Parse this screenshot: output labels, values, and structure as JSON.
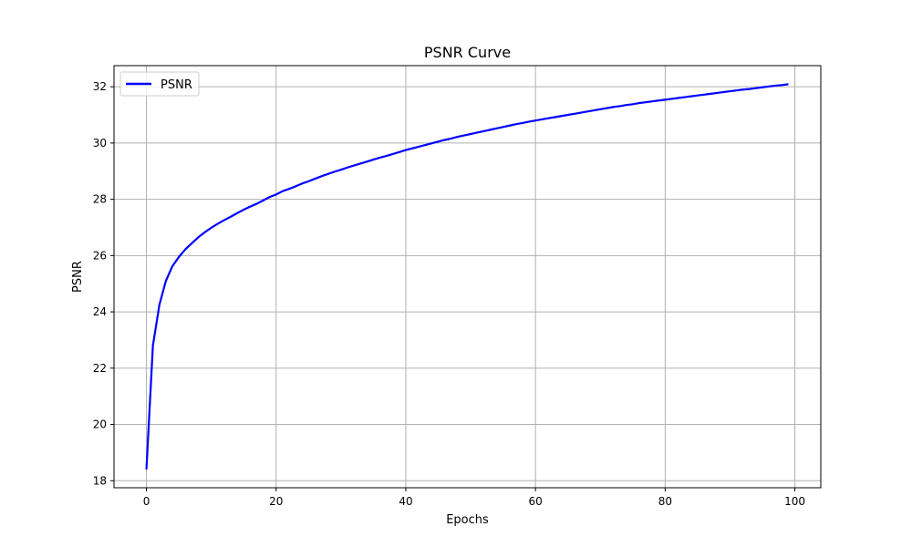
{
  "chart_data": {
    "type": "line",
    "title": "PSNR Curve",
    "xlabel": "Epochs",
    "ylabel": "PSNR",
    "xlim": [
      -5,
      104
    ],
    "ylim": [
      17.75,
      32.75
    ],
    "xticks": [
      0,
      20,
      40,
      60,
      80,
      100
    ],
    "yticks": [
      18,
      20,
      22,
      24,
      26,
      28,
      30,
      32
    ],
    "grid": true,
    "legend_position": "upper-left",
    "series": [
      {
        "name": "PSNR",
        "color": "#0000ff",
        "x": [
          0,
          1,
          2,
          3,
          4,
          5,
          6,
          7,
          8,
          9,
          10,
          11,
          12,
          13,
          14,
          15,
          16,
          17,
          18,
          19,
          20,
          21,
          22,
          23,
          24,
          25,
          26,
          27,
          28,
          29,
          30,
          31,
          32,
          33,
          34,
          35,
          36,
          37,
          38,
          39,
          40,
          41,
          42,
          43,
          44,
          45,
          46,
          47,
          48,
          49,
          50,
          51,
          52,
          53,
          54,
          55,
          56,
          57,
          58,
          59,
          60,
          61,
          62,
          63,
          64,
          65,
          66,
          67,
          68,
          69,
          70,
          71,
          72,
          73,
          74,
          75,
          76,
          77,
          78,
          79,
          80,
          81,
          82,
          83,
          84,
          85,
          86,
          87,
          88,
          89,
          90,
          91,
          92,
          93,
          94,
          95,
          96,
          97,
          98,
          99
        ],
        "y": [
          18.4,
          22.8,
          24.25,
          25.1,
          25.62,
          25.95,
          26.22,
          26.44,
          26.65,
          26.83,
          26.99,
          27.13,
          27.26,
          27.38,
          27.51,
          27.63,
          27.74,
          27.84,
          27.96,
          28.08,
          28.17,
          28.29,
          28.37,
          28.46,
          28.56,
          28.64,
          28.73,
          28.82,
          28.9,
          28.98,
          29.05,
          29.13,
          29.2,
          29.27,
          29.34,
          29.41,
          29.48,
          29.54,
          29.61,
          29.68,
          29.75,
          29.81,
          29.87,
          29.93,
          29.99,
          30.05,
          30.11,
          30.16,
          30.22,
          30.27,
          30.32,
          30.37,
          30.42,
          30.47,
          30.52,
          30.57,
          30.62,
          30.67,
          30.71,
          30.76,
          30.8,
          30.84,
          30.88,
          30.92,
          30.96,
          31.0,
          31.04,
          31.08,
          31.12,
          31.16,
          31.2,
          31.24,
          31.28,
          31.31,
          31.35,
          31.38,
          31.42,
          31.45,
          31.48,
          31.51,
          31.54,
          31.57,
          31.6,
          31.63,
          31.66,
          31.69,
          31.72,
          31.75,
          31.78,
          31.81,
          31.84,
          31.87,
          31.9,
          31.92,
          31.95,
          31.98,
          32.01,
          32.04,
          32.06,
          32.09
        ]
      }
    ]
  }
}
